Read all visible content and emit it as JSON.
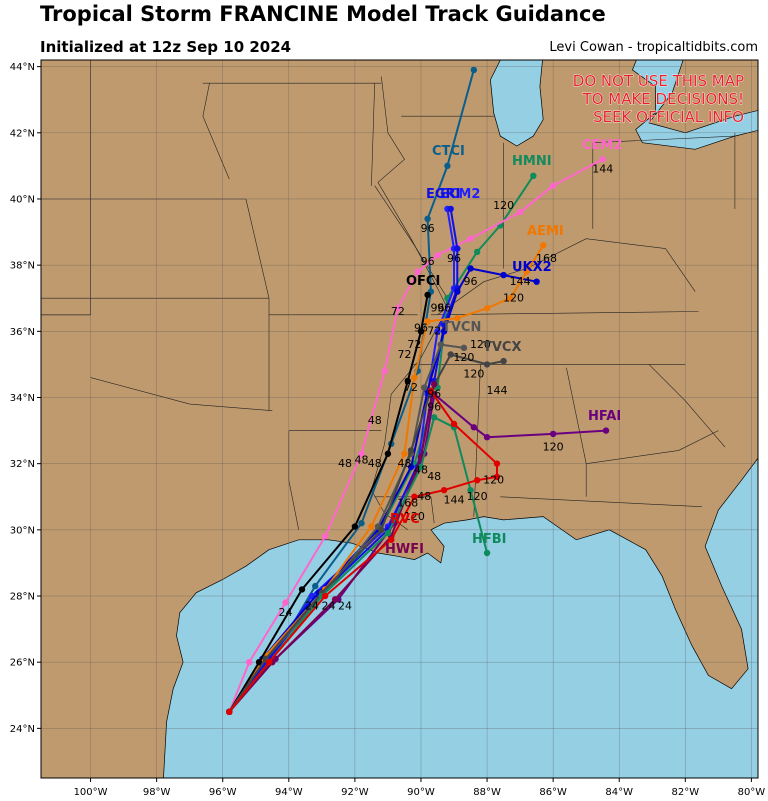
{
  "title": "Tropical Storm FRANCINE Model Track Guidance",
  "subtitle": "Initialized at 12z Sep 10 2024",
  "credit": "Levi Cowan - tropicaltidbits.com",
  "warning": [
    "DO NOT USE THIS MAP",
    "TO MAKE DECISIONS!",
    "SEEK OFFICIAL INFO"
  ],
  "colors": {
    "ocean": "#95cfe4",
    "land": "#bf9a6e",
    "warning": "#e8202a"
  },
  "map_extent": {
    "lon_min": -101.5,
    "lon_max": -79.8,
    "lat_min": 22.5,
    "lat_max": 44.2
  },
  "lat_labels": [
    {
      "lat": 44,
      "text": "44°N"
    },
    {
      "lat": 42,
      "text": "42°N"
    },
    {
      "lat": 40,
      "text": "40°N"
    },
    {
      "lat": 38,
      "text": "38°N"
    },
    {
      "lat": 36,
      "text": "36°N"
    },
    {
      "lat": 34,
      "text": "34°N"
    },
    {
      "lat": 32,
      "text": "32°N"
    },
    {
      "lat": 30,
      "text": "30°N"
    },
    {
      "lat": 28,
      "text": "28°N"
    },
    {
      "lat": 26,
      "text": "26°N"
    },
    {
      "lat": 24,
      "text": "24°N"
    }
  ],
  "lon_labels": [
    {
      "lon": -100,
      "text": "100°W"
    },
    {
      "lon": -98,
      "text": "98°W"
    },
    {
      "lon": -96,
      "text": "96°W"
    },
    {
      "lon": -94,
      "text": "94°W"
    },
    {
      "lon": -92,
      "text": "92°W"
    },
    {
      "lon": -90,
      "text": "90°W"
    },
    {
      "lon": -88,
      "text": "88°W"
    },
    {
      "lon": -86,
      "text": "86°W"
    },
    {
      "lon": -84,
      "text": "84°W"
    },
    {
      "lon": -82,
      "text": "82°W"
    },
    {
      "lon": -80,
      "text": "80°W"
    }
  ],
  "models": [
    {
      "name": "CTCI",
      "color": "#0a5e8c",
      "points": [
        [
          -95.8,
          24.5
        ],
        [
          -94.5,
          26.1
        ],
        [
          -93.2,
          28.3
        ],
        [
          -91.8,
          30.2
        ],
        [
          -90.9,
          32.6
        ],
        [
          -90.1,
          34.8
        ],
        [
          -89.7,
          37.2
        ],
        [
          -89.8,
          39.4
        ],
        [
          -89.2,
          41.0
        ],
        [
          -88.4,
          43.9
        ]
      ],
      "labels": [
        {
          "text": "96",
          "lon": -89.8,
          "lat": 39.0
        }
      ]
    },
    {
      "name": "HMNI",
      "color": "#118a5c",
      "points": [
        [
          -95.8,
          24.5
        ],
        [
          -94.6,
          26.2
        ],
        [
          -93.0,
          28.0
        ],
        [
          -91.3,
          29.9
        ],
        [
          -90.2,
          32.0
        ],
        [
          -89.5,
          34.3
        ],
        [
          -89.2,
          37.0
        ],
        [
          -88.3,
          38.4
        ],
        [
          -87.6,
          39.2
        ],
        [
          -86.6,
          40.7
        ]
      ],
      "labels": [
        {
          "text": "120",
          "lon": -87.5,
          "lat": 39.7
        }
      ]
    },
    {
      "name": "CEM2",
      "color": "#ff66cc",
      "points": [
        [
          -95.8,
          24.5
        ],
        [
          -95.2,
          26.0
        ],
        [
          -94.1,
          27.8
        ],
        [
          -92.9,
          29.8
        ],
        [
          -91.8,
          32.3
        ],
        [
          -91.1,
          34.8
        ],
        [
          -90.7,
          36.7
        ],
        [
          -90.1,
          37.8
        ],
        [
          -89.5,
          38.3
        ],
        [
          -88.5,
          38.8
        ],
        [
          -87.0,
          39.6
        ],
        [
          -86.0,
          40.4
        ],
        [
          -84.5,
          41.2
        ]
      ],
      "labels": [
        {
          "text": "24",
          "lon": -94.1,
          "lat": 27.4
        },
        {
          "text": "48",
          "lon": -91.8,
          "lat": 32.0
        },
        {
          "text": "72",
          "lon": -90.7,
          "lat": 36.5
        },
        {
          "text": "144",
          "lon": -84.5,
          "lat": 40.8
        }
      ]
    },
    {
      "name": "ECM2",
      "color": "#2020ff",
      "points": [
        [
          -95.8,
          24.5
        ],
        [
          -94.7,
          26.0
        ],
        [
          -93.3,
          28.0
        ],
        [
          -91.0,
          30.1
        ],
        [
          -90.1,
          31.9
        ],
        [
          -89.8,
          34.1
        ],
        [
          -89.5,
          36.0
        ],
        [
          -89.0,
          37.3
        ],
        [
          -89.0,
          38.5
        ],
        [
          -89.2,
          39.7
        ]
      ],
      "labels": []
    },
    {
      "name": "EGRI",
      "color": "#1010e0",
      "points": [
        [
          -95.8,
          24.5
        ],
        [
          -94.6,
          26.1
        ],
        [
          -93.1,
          28.0
        ],
        [
          -91.0,
          30.0
        ],
        [
          -90.0,
          32.2
        ],
        [
          -89.6,
          34.5
        ],
        [
          -89.3,
          36.2
        ],
        [
          -88.9,
          37.3
        ],
        [
          -88.9,
          38.5
        ],
        [
          -89.1,
          39.7
        ]
      ],
      "labels": [
        {
          "text": "96",
          "lon": -89.0,
          "lat": 38.1
        }
      ]
    },
    {
      "name": "UKX2",
      "color": "#0000cc",
      "points": [
        [
          -95.8,
          24.5
        ],
        [
          -94.8,
          26.1
        ],
        [
          -93.1,
          28.1
        ],
        [
          -91.3,
          30.0
        ],
        [
          -90.3,
          31.9
        ],
        [
          -89.8,
          34.2
        ],
        [
          -89.3,
          36.0
        ],
        [
          -88.9,
          37.2
        ],
        [
          -88.5,
          37.9
        ],
        [
          -87.5,
          37.7
        ],
        [
          -86.5,
          37.5
        ]
      ],
      "labels": [
        {
          "text": "96",
          "lon": -88.5,
          "lat": 37.4
        },
        {
          "text": "144",
          "lon": -87.0,
          "lat": 37.4
        }
      ]
    },
    {
      "name": "AEMI",
      "color": "#f07800",
      "points": [
        [
          -95.8,
          24.5
        ],
        [
          -94.7,
          26.2
        ],
        [
          -92.9,
          28.2
        ],
        [
          -91.5,
          30.1
        ],
        [
          -90.5,
          32.3
        ],
        [
          -90.2,
          34.6
        ],
        [
          -89.8,
          36.3
        ],
        [
          -88.9,
          36.4
        ],
        [
          -88.0,
          36.7
        ],
        [
          -87.3,
          37.0
        ],
        [
          -86.8,
          37.8
        ],
        [
          -86.3,
          38.6
        ]
      ],
      "labels": [
        {
          "text": "168",
          "lon": -86.2,
          "lat": 38.1
        },
        {
          "text": "120",
          "lon": -87.2,
          "lat": 36.9
        }
      ]
    },
    {
      "name": "OFCI",
      "color": "#000000",
      "points": [
        [
          -95.8,
          24.5
        ],
        [
          -94.9,
          26.0
        ],
        [
          -93.6,
          28.2
        ],
        [
          -92.0,
          30.1
        ],
        [
          -91.0,
          32.3
        ],
        [
          -90.4,
          34.5
        ],
        [
          -90.0,
          36.0
        ],
        [
          -89.8,
          37.1
        ]
      ],
      "labels": [
        {
          "text": "96",
          "lon": -89.5,
          "lat": 36.6
        }
      ]
    },
    {
      "name": "TVCN",
      "color": "#555555",
      "points": [
        [
          -95.8,
          24.5
        ],
        [
          -94.7,
          26.1
        ],
        [
          -93.0,
          28.0
        ],
        [
          -91.3,
          30.1
        ],
        [
          -90.3,
          32.3
        ],
        [
          -89.9,
          34.3
        ],
        [
          -89.4,
          35.6
        ],
        [
          -88.7,
          35.5
        ]
      ],
      "labels": [
        {
          "text": "120",
          "lon": -88.7,
          "lat": 35.1
        }
      ]
    },
    {
      "name": "TVCX",
      "color": "#444444",
      "points": [
        [
          -95.8,
          24.5
        ],
        [
          -94.7,
          26.1
        ],
        [
          -93.0,
          28.1
        ],
        [
          -91.2,
          30.0
        ],
        [
          -90.3,
          32.4
        ],
        [
          -89.7,
          34.2
        ],
        [
          -89.1,
          35.3
        ],
        [
          -88.0,
          35.0
        ],
        [
          -87.5,
          35.1
        ]
      ],
      "labels": [
        {
          "text": "120",
          "lon": -88.4,
          "lat": 34.6
        },
        {
          "text": "144",
          "lon": -87.7,
          "lat": 34.1
        }
      ]
    },
    {
      "name": "HFAI",
      "color": "#6a0080",
      "points": [
        [
          -95.8,
          24.5
        ],
        [
          -94.4,
          26.1
        ],
        [
          -92.5,
          27.9
        ],
        [
          -90.8,
          30.2
        ],
        [
          -89.9,
          32.3
        ],
        [
          -89.6,
          34.1
        ],
        [
          -88.4,
          33.1
        ],
        [
          -88.0,
          32.8
        ],
        [
          -86.0,
          32.9
        ],
        [
          -84.4,
          33.0
        ]
      ],
      "labels": [
        {
          "text": "120",
          "lon": -86.0,
          "lat": 32.4
        }
      ]
    },
    {
      "name": "HWFI",
      "color": "#7a0050",
      "points": [
        [
          -95.8,
          24.5
        ],
        [
          -94.5,
          26.0
        ],
        [
          -92.6,
          27.9
        ],
        [
          -90.9,
          29.8
        ],
        [
          -90.0,
          32.2
        ],
        [
          -89.6,
          34.4
        ]
      ],
      "labels": [
        {
          "text": "48",
          "lon": -89.6,
          "lat": 31.5
        }
      ]
    },
    {
      "name": "HFBI",
      "color": "#0f8a5c",
      "points": [
        [
          -95.8,
          24.5
        ],
        [
          -94.6,
          26.0
        ],
        [
          -93.0,
          28.0
        ],
        [
          -91.0,
          29.9
        ],
        [
          -90.0,
          31.9
        ],
        [
          -89.6,
          33.4
        ],
        [
          -89.0,
          33.1
        ],
        [
          -88.5,
          31.2
        ],
        [
          -88.0,
          29.3
        ]
      ],
      "labels": [
        {
          "text": "120",
          "lon": -88.3,
          "lat": 30.9
        }
      ]
    },
    {
      "name": "RVC",
      "color": "#e00000",
      "points": [
        [
          -95.8,
          24.5
        ],
        [
          -94.6,
          26.0
        ],
        [
          -92.9,
          28.0
        ],
        [
          -90.9,
          29.7
        ],
        [
          -90.2,
          31.0
        ],
        [
          -89.3,
          31.2
        ],
        [
          -88.3,
          31.5
        ],
        [
          -87.7,
          31.6
        ],
        [
          -87.7,
          32.0
        ],
        [
          -89.0,
          33.2
        ],
        [
          -89.7,
          34.2
        ]
      ],
      "labels": [
        {
          "text": "144",
          "lon": -89.0,
          "lat": 30.8
        },
        {
          "text": "120",
          "lon": -87.8,
          "lat": 31.4
        },
        {
          "text": "120",
          "lon": -90.2,
          "lat": 30.3
        }
      ]
    }
  ],
  "extra_labels": [
    {
      "text": "48",
      "lon": -92.3,
      "lat": 31.9
    },
    {
      "text": "48",
      "lon": -91.4,
      "lat": 31.9
    },
    {
      "text": "48",
      "lon": -90.5,
      "lat": 31.9
    },
    {
      "text": "48",
      "lon": -89.9,
      "lat": 30.9
    },
    {
      "text": "48",
      "lon": -91.4,
      "lat": 33.2
    },
    {
      "text": "96",
      "lon": -89.6,
      "lat": 33.6
    },
    {
      "text": "72",
      "lon": -90.3,
      "lat": 34.2
    },
    {
      "text": "72",
      "lon": -90.5,
      "lat": 35.2
    },
    {
      "text": "72",
      "lon": -89.6,
      "lat": 35.9
    },
    {
      "text": "96",
      "lon": -90.0,
      "lat": 36.0
    },
    {
      "text": "120",
      "lon": -88.2,
      "lat": 35.5
    },
    {
      "text": "24",
      "lon": -93.3,
      "lat": 27.6
    },
    {
      "text": "24",
      "lon": -92.8,
      "lat": 27.6
    },
    {
      "text": "24",
      "lon": -92.3,
      "lat": 27.6
    },
    {
      "text": "96",
      "lon": -89.8,
      "lat": 38.0
    },
    {
      "text": "96",
      "lon": -89.3,
      "lat": 36.6
    },
    {
      "text": "72",
      "lon": -90.2,
      "lat": 35.5
    },
    {
      "text": "96",
      "lon": -89.6,
      "lat": 34.0
    },
    {
      "text": "168",
      "lon": -90.4,
      "lat": 30.7
    },
    {
      "text": "48",
      "lon": -90.0,
      "lat": 31.7
    }
  ]
}
